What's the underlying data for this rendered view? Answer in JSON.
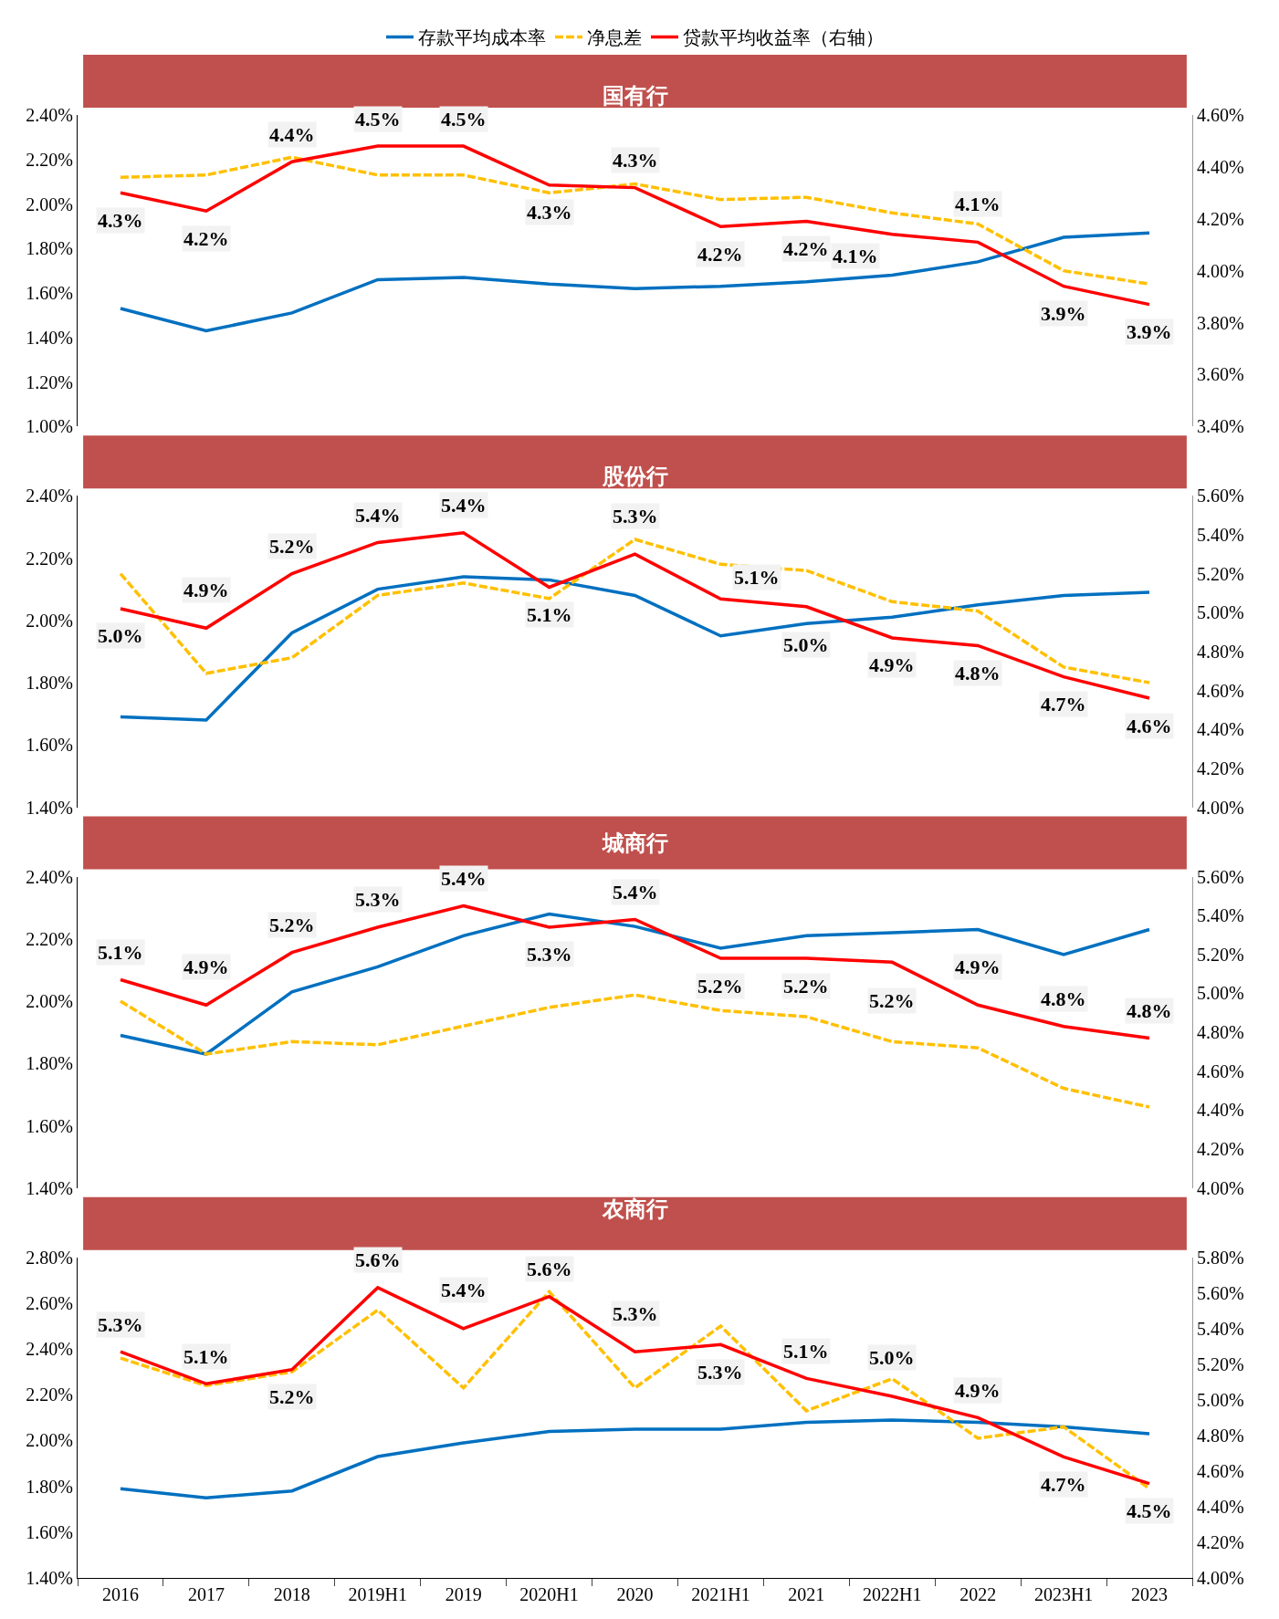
{
  "chart_data": [
    {
      "type": "line",
      "title": "国有行",
      "legend": "top",
      "tick_labels": "y",
      "categories": [
        null,
        null,
        null,
        null,
        null,
        null,
        null,
        null,
        null,
        null,
        null,
        null,
        null
      ],
      "ylim": [
        1.0,
        2.4
      ],
      "yticks": [
        {
          "value": 1.0,
          "label": "1.00%"
        },
        {
          "value": 1.2,
          "label": "1.20%"
        },
        {
          "value": 1.4,
          "label": "1.40%"
        },
        {
          "value": 1.6,
          "label": "1.60%"
        },
        {
          "value": 1.8,
          "label": "1.80%"
        },
        {
          "value": 2.0,
          "label": "2.00%"
        },
        {
          "value": 2.2,
          "label": "2.20%"
        },
        {
          "value": 2.4,
          "label": "2.40%"
        }
      ],
      "y2lim": [
        3.4,
        4.6
      ],
      "y2ticks": [
        {
          "value": 3.4,
          "label": "3.40%"
        },
        {
          "value": 3.6,
          "label": "3.60%"
        },
        {
          "value": 3.8,
          "label": "3.80%"
        },
        {
          "value": 4.0,
          "label": "4.00%"
        },
        {
          "value": 4.2,
          "label": "4.20%"
        },
        {
          "value": 4.4,
          "label": "4.40%"
        },
        {
          "value": 4.6,
          "label": "4.60%"
        }
      ],
      "series": [
        {
          "name": "存款平均成本率",
          "color": "#0070c0",
          "line_style": "solid",
          "values": [
            1.53,
            1.43,
            1.51,
            1.66,
            1.67,
            1.64,
            1.62,
            1.63,
            1.65,
            1.68,
            1.74,
            1.85,
            1.87
          ]
        },
        {
          "name": "净息差",
          "color": "#ffc000",
          "line_style": "dashed",
          "values": [
            2.12,
            2.13,
            2.21,
            2.13,
            2.13,
            2.05,
            2.09,
            2.02,
            2.03,
            1.96,
            1.91,
            1.7,
            1.64
          ]
        },
        {
          "name": "贷款平均收益率（右轴）",
          "color": "#ff0000",
          "line_style": "solid",
          "axis": "y2",
          "values": [
            4.3,
            4.23,
            4.42,
            4.48,
            4.48,
            4.33,
            4.32,
            4.17,
            4.19,
            4.14,
            4.11,
            3.94,
            3.87
          ],
          "value_labels": [
            "4.3%",
            "4.2%",
            "4.4%",
            "4.5%",
            "4.5%",
            "4.3%",
            "4.3%",
            "4.2%",
            "4.2%",
            "4.1%",
            "4.1%",
            "3.9%",
            "3.9%"
          ]
        }
      ]
    },
    {
      "type": "line",
      "title": "股份行",
      "tick_labels": "y",
      "categories": [
        null,
        null,
        null,
        null,
        null,
        null,
        null,
        null,
        null,
        null,
        null,
        null,
        null
      ],
      "ylim": [
        1.4,
        2.4
      ],
      "yticks": [
        {
          "value": 1.4,
          "label": "1.40%"
        },
        {
          "value": 1.6,
          "label": "1.60%"
        },
        {
          "value": 1.8,
          "label": "1.80%"
        },
        {
          "value": 2.0,
          "label": "2.00%"
        },
        {
          "value": 2.2,
          "label": "2.20%"
        },
        {
          "value": 2.4,
          "label": "2.40%"
        }
      ],
      "y2lim": [
        4.0,
        5.6
      ],
      "y2ticks": [
        {
          "value": 4.0,
          "label": "4.00%"
        },
        {
          "value": 4.2,
          "label": "4.20%"
        },
        {
          "value": 4.4,
          "label": "4.40%"
        },
        {
          "value": 4.6,
          "label": "4.60%"
        },
        {
          "value": 4.8,
          "label": "4.80%"
        },
        {
          "value": 5.0,
          "label": "5.00%"
        },
        {
          "value": 5.2,
          "label": "5.20%"
        },
        {
          "value": 5.4,
          "label": "5.40%"
        },
        {
          "value": 5.6,
          "label": "5.60%"
        }
      ],
      "series": [
        {
          "color": "#0070c0",
          "line_style": "solid",
          "values": [
            1.69,
            1.68,
            1.96,
            2.1,
            2.14,
            2.13,
            2.08,
            1.95,
            1.99,
            2.01,
            2.05,
            2.08,
            2.09
          ]
        },
        {
          "color": "#ffc000",
          "line_style": "dashed",
          "values": [
            2.15,
            1.83,
            1.88,
            2.08,
            2.12,
            2.07,
            2.26,
            2.18,
            2.16,
            2.06,
            2.03,
            1.85,
            1.8
          ]
        },
        {
          "color": "#ff0000",
          "line_style": "solid",
          "axis": "y2",
          "values": [
            5.02,
            4.92,
            5.2,
            5.36,
            5.41,
            5.13,
            5.3,
            5.07,
            5.03,
            4.87,
            4.83,
            4.67,
            4.56
          ],
          "value_labels": [
            "5.0%",
            "4.9%",
            "5.2%",
            "5.4%",
            "5.4%",
            "5.1%",
            "5.3%",
            "5.1%",
            "5.0%",
            "4.9%",
            "4.8%",
            "4.7%",
            "4.6%"
          ]
        }
      ]
    },
    {
      "type": "line",
      "title": "城商行",
      "tick_labels": "y",
      "categories": [
        null,
        null,
        null,
        null,
        null,
        null,
        null,
        null,
        null,
        null,
        null,
        null,
        null
      ],
      "ylim": [
        1.4,
        2.4
      ],
      "yticks": [
        {
          "value": 1.4,
          "label": "1.40%"
        },
        {
          "value": 1.6,
          "label": "1.60%"
        },
        {
          "value": 1.8,
          "label": "1.80%"
        },
        {
          "value": 2.0,
          "label": "2.00%"
        },
        {
          "value": 2.2,
          "label": "2.20%"
        },
        {
          "value": 2.4,
          "label": "2.40%"
        }
      ],
      "y2lim": [
        4.0,
        5.6
      ],
      "y2ticks": [
        {
          "value": 4.0,
          "label": "4.00%"
        },
        {
          "value": 4.2,
          "label": "4.20%"
        },
        {
          "value": 4.4,
          "label": "4.40%"
        },
        {
          "value": 4.6,
          "label": "4.60%"
        },
        {
          "value": 4.8,
          "label": "4.80%"
        },
        {
          "value": 5.0,
          "label": "5.00%"
        },
        {
          "value": 5.2,
          "label": "5.20%"
        },
        {
          "value": 5.4,
          "label": "5.40%"
        },
        {
          "value": 5.6,
          "label": "5.60%"
        }
      ],
      "series": [
        {
          "color": "#0070c0",
          "line_style": "solid",
          "values": [
            1.89,
            1.83,
            2.03,
            2.11,
            2.21,
            2.28,
            2.24,
            2.17,
            2.21,
            2.22,
            2.23,
            2.15,
            2.23
          ]
        },
        {
          "color": "#ffc000",
          "line_style": "dashed",
          "values": [
            2.0,
            1.83,
            1.87,
            1.86,
            1.92,
            1.98,
            2.02,
            1.97,
            1.95,
            1.87,
            1.85,
            1.72,
            1.66
          ]
        },
        {
          "color": "#ff0000",
          "line_style": "solid",
          "axis": "y2",
          "values": [
            5.07,
            4.94,
            5.21,
            5.34,
            5.45,
            5.34,
            5.38,
            5.18,
            5.18,
            5.16,
            4.94,
            4.83,
            4.77
          ],
          "value_labels": [
            "5.1%",
            "4.9%",
            "5.2%",
            "5.3%",
            "5.4%",
            "5.3%",
            "5.4%",
            "5.2%",
            "5.2%",
            "5.2%",
            "4.9%",
            "4.8%",
            "4.8%"
          ]
        }
      ]
    },
    {
      "type": "line",
      "title": "农商行",
      "categories": [
        "2016",
        "2017",
        "2018",
        "2019H1",
        "2019",
        "2020H1",
        "2020",
        "2021H1",
        "2021",
        "2022H1",
        "2022",
        "2023H1",
        "2023"
      ],
      "ylim": [
        1.4,
        2.8
      ],
      "yticks": [
        {
          "value": 1.4,
          "label": "1.40%"
        },
        {
          "value": 1.6,
          "label": "1.60%"
        },
        {
          "value": 1.8,
          "label": "1.80%"
        },
        {
          "value": 2.0,
          "label": "2.00%"
        },
        {
          "value": 2.2,
          "label": "2.20%"
        },
        {
          "value": 2.4,
          "label": "2.40%"
        },
        {
          "value": 2.6,
          "label": "2.60%"
        },
        {
          "value": 2.8,
          "label": "2.80%"
        }
      ],
      "y2lim": [
        4.0,
        5.8
      ],
      "y2ticks": [
        {
          "value": 4.0,
          "label": "4.00%"
        },
        {
          "value": 4.2,
          "label": "4.20%"
        },
        {
          "value": 4.4,
          "label": "4.40%"
        },
        {
          "value": 4.6,
          "label": "4.60%"
        },
        {
          "value": 4.8,
          "label": "4.80%"
        },
        {
          "value": 5.0,
          "label": "5.00%"
        },
        {
          "value": 5.2,
          "label": "5.20%"
        },
        {
          "value": 5.4,
          "label": "5.40%"
        },
        {
          "value": 5.6,
          "label": "5.60%"
        },
        {
          "value": 5.8,
          "label": "5.80%"
        }
      ],
      "series": [
        {
          "color": "#0070c0",
          "line_style": "solid",
          "values": [
            1.79,
            1.75,
            1.78,
            1.93,
            1.99,
            2.04,
            2.05,
            2.05,
            2.08,
            2.09,
            2.08,
            2.06,
            2.03
          ]
        },
        {
          "color": "#ffc000",
          "line_style": "dashed",
          "values": [
            2.36,
            2.24,
            2.3,
            2.57,
            2.23,
            2.65,
            2.23,
            2.5,
            2.13,
            2.27,
            2.01,
            2.06,
            1.79
          ]
        },
        {
          "color": "#ff0000",
          "line_style": "solid",
          "axis": "y2",
          "values": [
            5.27,
            5.09,
            5.17,
            5.63,
            5.4,
            5.58,
            5.27,
            5.31,
            5.12,
            5.02,
            4.9,
            4.68,
            4.53
          ],
          "value_labels": [
            "5.3%",
            "5.1%",
            "5.2%",
            "5.6%",
            "5.4%",
            "5.6%",
            "5.3%",
            "5.3%",
            "5.1%",
            "5.0%",
            "4.9%",
            "4.7%",
            "4.5%"
          ]
        }
      ]
    }
  ]
}
